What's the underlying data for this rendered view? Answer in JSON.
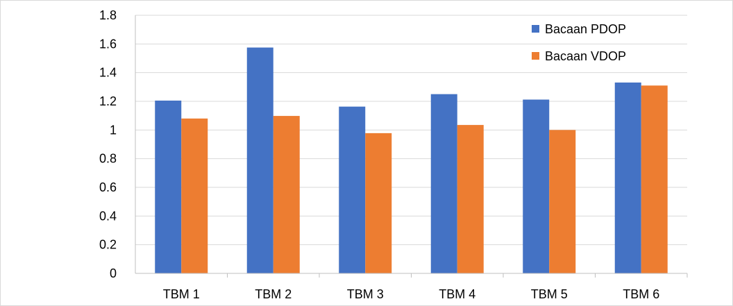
{
  "chart_data": {
    "type": "bar",
    "categories": [
      "TBM 1",
      "TBM 2",
      "TBM 3",
      "TBM 4",
      "TBM 5",
      "TBM 6"
    ],
    "series": [
      {
        "name": "Bacaan PDOP",
        "color": "#4472c4",
        "values": [
          1.205,
          1.575,
          1.163,
          1.25,
          1.212,
          1.331
        ]
      },
      {
        "name": "Bacaan VDOP",
        "color": "#ed7d31",
        "values": [
          1.08,
          1.098,
          0.978,
          1.035,
          1.0,
          1.31
        ]
      }
    ],
    "ylim": [
      0,
      1.8
    ],
    "yticks": [
      "0",
      "0.2",
      "0.4",
      "0.6",
      "0.8",
      "1",
      "1.2",
      "1.4",
      "1.6",
      "1.8"
    ],
    "grid": true,
    "legend_position": "top-right"
  }
}
